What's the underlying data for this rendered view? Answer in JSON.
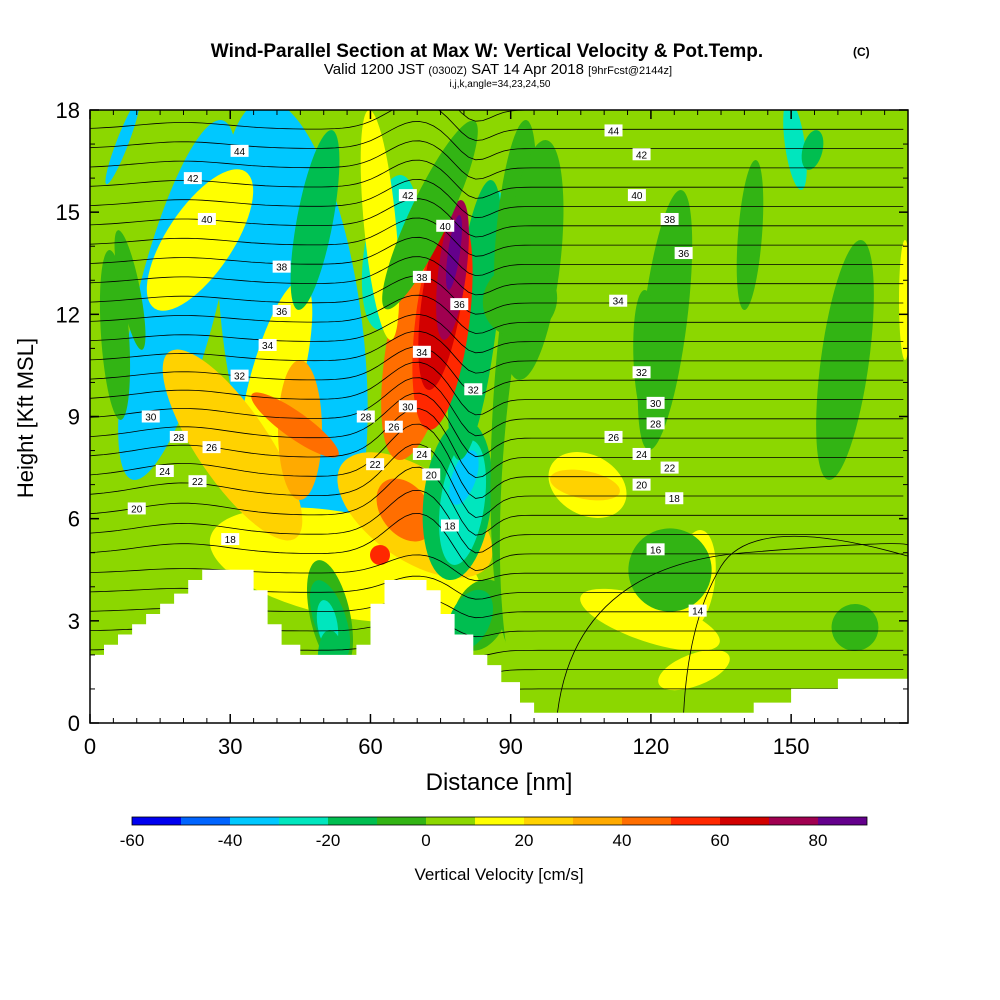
{
  "chart_data": {
    "type": "heatmap",
    "title": {
      "main": "Wind-Parallel Section at Max W: Vertical Velocity & Pot.Temp.",
      "mark": "(C)",
      "line2_valid": "Valid 1200 JST",
      "line2_utc": "(0300Z)",
      "line2_date": "SAT 14 Apr 2018",
      "line2_fcst": "[9hrFcst@2144z]",
      "line3": "i,j,k,angle=34,23,24,50"
    },
    "xlabel": "Distance [nm]",
    "ylabel": "Height [Kft MSL]",
    "xlim": [
      0,
      175
    ],
    "ylim": [
      0,
      18
    ],
    "xticks": [
      "0",
      "30",
      "60",
      "90",
      "120",
      "150"
    ],
    "yticks": [
      "0",
      "3",
      "6",
      "9",
      "12",
      "15",
      "18"
    ],
    "colorbar": {
      "label": "Vertical Velocity [cm/s]",
      "ticks": [
        "-60",
        "-40",
        "-20",
        "0",
        "20",
        "40",
        "60",
        "80"
      ],
      "levels": [
        -60,
        -50,
        -40,
        -30,
        -20,
        -10,
        0,
        10,
        20,
        30,
        40,
        50,
        60,
        70,
        80,
        90
      ],
      "colors": [
        "#0000f0",
        "#0064ff",
        "#00c8ff",
        "#00e6be",
        "#00be50",
        "#32b414",
        "#8cd700",
        "#ffff00",
        "#ffd200",
        "#ffaa00",
        "#ff6e00",
        "#ff2800",
        "#d20000",
        "#a00050",
        "#64008c"
      ]
    },
    "theta_contours": {
      "levels": [
        14,
        16,
        18,
        20,
        22,
        24,
        26,
        28,
        30,
        32,
        34,
        36,
        38,
        40,
        42,
        44
      ],
      "labels": [
        {
          "text": "44",
          "x": 32,
          "y": 16.8
        },
        {
          "text": "42",
          "x": 22,
          "y": 16.0
        },
        {
          "text": "40",
          "x": 25,
          "y": 14.8
        },
        {
          "text": "38",
          "x": 41,
          "y": 13.4
        },
        {
          "text": "36",
          "x": 41,
          "y": 12.1
        },
        {
          "text": "34",
          "x": 38,
          "y": 11.1
        },
        {
          "text": "32",
          "x": 32,
          "y": 10.2
        },
        {
          "text": "30",
          "x": 13,
          "y": 9.0
        },
        {
          "text": "28",
          "x": 19,
          "y": 8.4
        },
        {
          "text": "26",
          "x": 26,
          "y": 8.1
        },
        {
          "text": "24",
          "x": 16,
          "y": 7.4
        },
        {
          "text": "22",
          "x": 23,
          "y": 7.1
        },
        {
          "text": "20",
          "x": 10,
          "y": 6.3
        },
        {
          "text": "18",
          "x": 30,
          "y": 5.4
        },
        {
          "text": "28",
          "x": 59,
          "y": 9.0
        },
        {
          "text": "26",
          "x": 65,
          "y": 8.7
        },
        {
          "text": "22",
          "x": 61,
          "y": 7.6
        },
        {
          "text": "30",
          "x": 68,
          "y": 9.3
        },
        {
          "text": "24",
          "x": 71,
          "y": 7.9
        },
        {
          "text": "20",
          "x": 73,
          "y": 7.3
        },
        {
          "text": "18",
          "x": 77,
          "y": 5.8
        },
        {
          "text": "34",
          "x": 71,
          "y": 10.9
        },
        {
          "text": "36",
          "x": 79,
          "y": 12.3
        },
        {
          "text": "38",
          "x": 71,
          "y": 13.1
        },
        {
          "text": "40",
          "x": 76,
          "y": 14.6
        },
        {
          "text": "42",
          "x": 68,
          "y": 15.5
        },
        {
          "text": "32",
          "x": 82,
          "y": 9.8
        },
        {
          "text": "44",
          "x": 112,
          "y": 17.4
        },
        {
          "text": "42",
          "x": 118,
          "y": 16.7
        },
        {
          "text": "40",
          "x": 117,
          "y": 15.5
        },
        {
          "text": "38",
          "x": 124,
          "y": 14.8
        },
        {
          "text": "36",
          "x": 127,
          "y": 13.8
        },
        {
          "text": "34",
          "x": 113,
          "y": 12.4
        },
        {
          "text": "32",
          "x": 118,
          "y": 10.3
        },
        {
          "text": "30",
          "x": 121,
          "y": 9.4
        },
        {
          "text": "28",
          "x": 121,
          "y": 8.8
        },
        {
          "text": "26",
          "x": 112,
          "y": 8.4
        },
        {
          "text": "24",
          "x": 118,
          "y": 7.9
        },
        {
          "text": "22",
          "x": 124,
          "y": 7.5
        },
        {
          "text": "20",
          "x": 118,
          "y": 7.0
        },
        {
          "text": "18",
          "x": 125,
          "y": 6.6
        },
        {
          "text": "16",
          "x": 121,
          "y": 5.1
        },
        {
          "text": "14",
          "x": 130,
          "y": 3.3
        }
      ]
    },
    "terrain": [
      [
        0,
        2.0
      ],
      [
        3,
        2.0
      ],
      [
        3,
        2.3
      ],
      [
        6,
        2.3
      ],
      [
        6,
        2.6
      ],
      [
        9,
        2.6
      ],
      [
        9,
        2.9
      ],
      [
        12,
        2.9
      ],
      [
        12,
        3.2
      ],
      [
        15,
        3.2
      ],
      [
        15,
        3.5
      ],
      [
        18,
        3.5
      ],
      [
        18,
        3.8
      ],
      [
        21,
        3.8
      ],
      [
        21,
        4.2
      ],
      [
        24,
        4.2
      ],
      [
        24,
        4.5
      ],
      [
        30,
        4.5
      ],
      [
        35,
        4.5
      ],
      [
        35,
        3.9
      ],
      [
        38,
        3.9
      ],
      [
        38,
        2.9
      ],
      [
        41,
        2.9
      ],
      [
        41,
        2.3
      ],
      [
        45,
        2.3
      ],
      [
        45,
        2.0
      ],
      [
        57,
        2.0
      ],
      [
        57,
        2.3
      ],
      [
        60,
        2.3
      ],
      [
        60,
        3.5
      ],
      [
        63,
        3.5
      ],
      [
        63,
        4.2
      ],
      [
        72,
        4.2
      ],
      [
        72,
        3.9
      ],
      [
        75,
        3.9
      ],
      [
        75,
        3.2
      ],
      [
        78,
        3.2
      ],
      [
        78,
        2.6
      ],
      [
        82,
        2.6
      ],
      [
        82,
        2.0
      ],
      [
        85,
        2.0
      ],
      [
        85,
        1.7
      ],
      [
        88,
        1.7
      ],
      [
        88,
        1.2
      ],
      [
        92,
        1.2
      ],
      [
        92,
        0.6
      ],
      [
        95,
        0.6
      ],
      [
        95,
        0.3
      ],
      [
        104,
        0.3
      ],
      [
        142,
        0.3
      ],
      [
        142,
        0.6
      ],
      [
        150,
        0.6
      ],
      [
        150,
        1.0
      ],
      [
        160,
        1.0
      ],
      [
        160,
        1.3
      ],
      [
        175,
        1.3
      ]
    ]
  }
}
